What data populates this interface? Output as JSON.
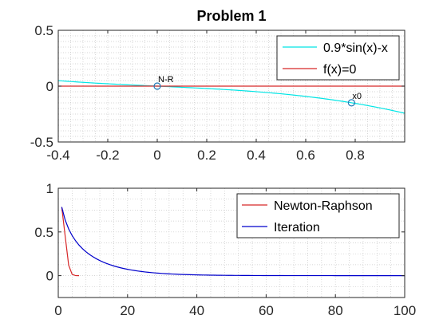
{
  "chart_data": [
    {
      "type": "line",
      "title": "Problem 1",
      "xlabel": "",
      "ylabel": "",
      "xlim": [
        -0.4,
        1.0
      ],
      "ylim": [
        -0.5,
        0.5
      ],
      "xticks": [
        -0.4,
        -0.2,
        0,
        0.2,
        0.4,
        0.6,
        0.8
      ],
      "xtick_labels": [
        "-0.4",
        "-0.2",
        "0",
        "0.2",
        "0.4",
        "0.6",
        "0.8"
      ],
      "yticks": [
        -0.5,
        0,
        0.5
      ],
      "ytick_labels": [
        "-0.5",
        "0",
        "0.5"
      ],
      "grid": "minor-dotted",
      "legend_position": "top-right",
      "series": [
        {
          "name": "0.9*sin(x)-x",
          "color": "#00e5e5",
          "function": "0.9*sin(x)-x",
          "x_range": [
            -0.4,
            1.0
          ]
        },
        {
          "name": "f(x)=0",
          "color": "#d62728",
          "x": [
            -0.4,
            1.0
          ],
          "y": [
            0,
            0
          ]
        }
      ],
      "markers": [
        {
          "label": "N-R",
          "x": 0,
          "y": 0,
          "color": "#1f77b4"
        },
        {
          "label": "x0",
          "x": 0.785,
          "y": -0.149,
          "color": "#1f77b4"
        }
      ]
    },
    {
      "type": "line",
      "title": "",
      "xlabel": "",
      "ylabel": "",
      "xlim": [
        0,
        100
      ],
      "ylim": [
        -0.25,
        1.0
      ],
      "xticks": [
        0,
        20,
        40,
        60,
        80,
        100
      ],
      "xtick_labels": [
        "0",
        "20",
        "40",
        "60",
        "80",
        "100"
      ],
      "yticks": [
        0,
        0.5,
        1
      ],
      "ytick_labels": [
        "0",
        "0.5",
        "1"
      ],
      "grid": "minor-dotted",
      "legend_position": "top-right",
      "series": [
        {
          "name": "Newton-Raphson",
          "color": "#d62728",
          "x": [
            1,
            2,
            3,
            4,
            5,
            6
          ],
          "y": [
            0.785,
            0.45,
            0.12,
            0.015,
            0.0002,
            0.0
          ]
        },
        {
          "name": "Iteration",
          "color": "#0000cc",
          "model": "iteration_0.9sin",
          "x0": 0.785,
          "n": 100
        }
      ]
    }
  ]
}
